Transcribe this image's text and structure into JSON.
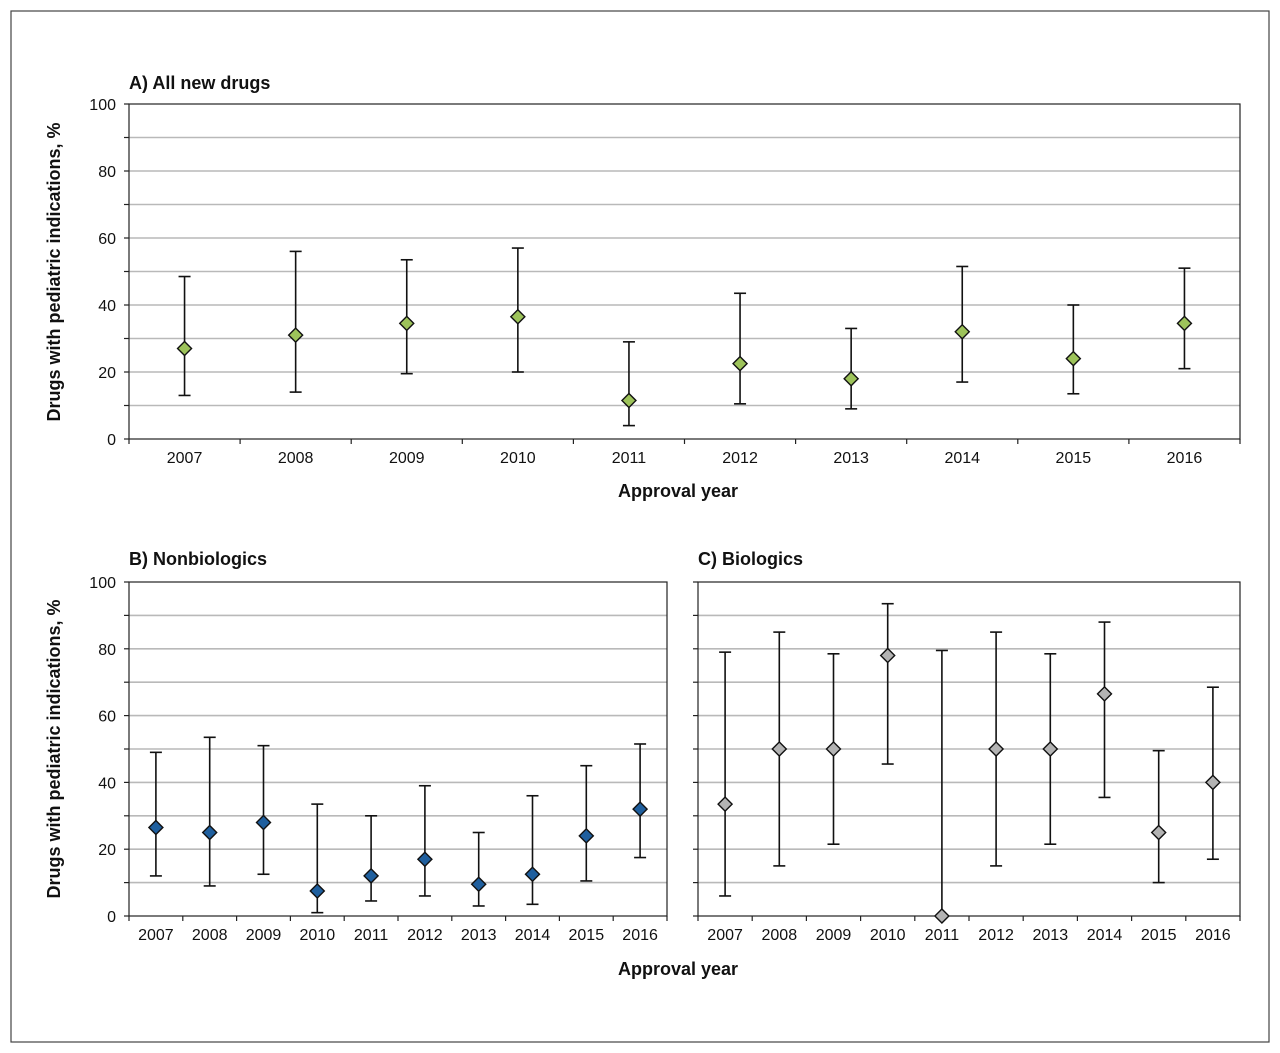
{
  "chart_data": [
    {
      "type": "scatter",
      "title": "A) All new drugs",
      "xlabel": "Approval year",
      "ylabel": "Drugs with pediatric indications, %",
      "ylim": [
        0,
        100
      ],
      "yticks": [
        "0",
        "20",
        "40",
        "60",
        "80",
        "100"
      ],
      "grid": true,
      "marker_color": "#9dc35a",
      "x": [
        "2007",
        "2008",
        "2009",
        "2010",
        "2011",
        "2012",
        "2013",
        "2014",
        "2015",
        "2016"
      ],
      "values": [
        27,
        31,
        34.5,
        36.5,
        11.5,
        22.5,
        18,
        32,
        24,
        34.5
      ],
      "ci_low": [
        13,
        14,
        19.5,
        20,
        4,
        10.5,
        9,
        17,
        13.5,
        21
      ],
      "ci_high": [
        48.5,
        56,
        53.5,
        57,
        29,
        43.5,
        33,
        51.5,
        40,
        51
      ]
    },
    {
      "type": "scatter",
      "title": "B) Nonbiologics",
      "xlabel": "Approval year",
      "ylabel": "Drugs with pediatric indications, %",
      "ylim": [
        0,
        100
      ],
      "yticks": [
        "0",
        "20",
        "40",
        "60",
        "80",
        "100"
      ],
      "grid": true,
      "marker_color": "#1f5f9e",
      "x": [
        "2007",
        "2008",
        "2009",
        "2010",
        "2011",
        "2012",
        "2013",
        "2014",
        "2015",
        "2016"
      ],
      "values": [
        26.5,
        25,
        28,
        7.5,
        12,
        17,
        9.5,
        12.5,
        24,
        32
      ],
      "ci_low": [
        12,
        9,
        12.5,
        1,
        4.5,
        6,
        3,
        3.5,
        10.5,
        17.5
      ],
      "ci_high": [
        49,
        53.5,
        51,
        33.5,
        30,
        39,
        25,
        36,
        45,
        51.5
      ]
    },
    {
      "type": "scatter",
      "title": "C) Biologics",
      "xlabel": "Approval year",
      "ylim": [
        0,
        100
      ],
      "grid": true,
      "marker_color": "#b3b3b3",
      "x": [
        "2007",
        "2008",
        "2009",
        "2010",
        "2011",
        "2012",
        "2013",
        "2014",
        "2015",
        "2016"
      ],
      "values": [
        33.5,
        50,
        50,
        78,
        0,
        50,
        50,
        66.5,
        25,
        40
      ],
      "ci_low": [
        6,
        15,
        21.5,
        45.5,
        0,
        15,
        21.5,
        35.5,
        10,
        17
      ],
      "ci_high": [
        79,
        85,
        78.5,
        93.5,
        79.5,
        85,
        78.5,
        88,
        49.5,
        68.5
      ]
    }
  ],
  "figure": {
    "panel_a_title": "A) All new drugs",
    "panel_b_title": "B) Nonbiologics",
    "panel_c_title": "C) Biologics",
    "ylabel": "Drugs with pediatric indications, %",
    "xlabel": "Approval year"
  }
}
